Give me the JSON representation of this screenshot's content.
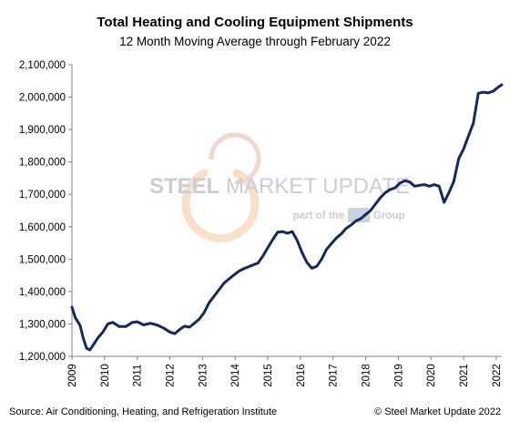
{
  "chart_data": {
    "type": "line",
    "title": "Total Heating and Cooling Equipment Shipments",
    "subtitle": "12 Month  Moving Average through  February  2022",
    "xlabel": "",
    "ylabel": "",
    "xlim": [
      2009,
      2022.17
    ],
    "ylim": [
      1200000,
      2100000
    ],
    "y_ticks": [
      1200000,
      1300000,
      1400000,
      1500000,
      1600000,
      1700000,
      1800000,
      1900000,
      2000000,
      2100000
    ],
    "y_tick_labels": [
      "1,200,000",
      "1,300,000",
      "1,400,000",
      "1,500,000",
      "1,600,000",
      "1,700,000",
      "1,800,000",
      "1,900,000",
      "2,000,000",
      "2,100,000"
    ],
    "x_ticks": [
      2009,
      2010,
      2011,
      2012,
      2013,
      2014,
      2015,
      2016,
      2017,
      2018,
      2019,
      2020,
      2021,
      2022
    ],
    "x_tick_labels": [
      "2009",
      "2010",
      "2011",
      "2012",
      "2013",
      "2014",
      "2015",
      "2016",
      "2017",
      "2018",
      "2019",
      "2020",
      "2021",
      "2022"
    ],
    "grid": false,
    "line_color": "#14295e",
    "series": [
      {
        "x": [
          2009.0,
          2009.1,
          2009.25,
          2009.35,
          2009.45,
          2009.55,
          2009.65,
          2009.8,
          2009.95,
          2010.1,
          2010.25,
          2010.45,
          2010.65,
          2010.85,
          2011.0,
          2011.2,
          2011.4,
          2011.6,
          2011.8,
          2012.0,
          2012.15,
          2012.3,
          2012.45,
          2012.6,
          2012.75,
          2012.9,
          2013.05,
          2013.2,
          2013.35,
          2013.5,
          2013.65,
          2013.8,
          2013.95,
          2014.1,
          2014.25,
          2014.4,
          2014.55,
          2014.7,
          2014.85,
          2015.0,
          2015.15,
          2015.3,
          2015.45,
          2015.6,
          2015.75,
          2015.9,
          2016.05,
          2016.2,
          2016.35,
          2016.5,
          2016.65,
          2016.8,
          2016.95,
          2017.1,
          2017.25,
          2017.4,
          2017.55,
          2017.7,
          2017.85,
          2018.0,
          2018.15,
          2018.3,
          2018.45,
          2018.6,
          2018.75,
          2018.9,
          2019.05,
          2019.2,
          2019.35,
          2019.5,
          2019.65,
          2019.8,
          2019.95,
          2020.1,
          2020.25,
          2020.4,
          2020.55,
          2020.7,
          2020.85,
          2021.0,
          2021.15,
          2021.3,
          2021.45,
          2021.6,
          2021.75,
          2021.9,
          2022.05,
          2022.17
        ],
        "y": [
          1352000,
          1320000,
          1295000,
          1255000,
          1225000,
          1220000,
          1235000,
          1258000,
          1275000,
          1300000,
          1305000,
          1292000,
          1292000,
          1305000,
          1307000,
          1297000,
          1302000,
          1297000,
          1288000,
          1275000,
          1270000,
          1283000,
          1293000,
          1290000,
          1302000,
          1315000,
          1335000,
          1365000,
          1385000,
          1405000,
          1425000,
          1438000,
          1450000,
          1462000,
          1470000,
          1476000,
          1482000,
          1488000,
          1510000,
          1535000,
          1560000,
          1583000,
          1585000,
          1580000,
          1585000,
          1558000,
          1520000,
          1490000,
          1472000,
          1478000,
          1500000,
          1530000,
          1548000,
          1565000,
          1578000,
          1595000,
          1605000,
          1618000,
          1625000,
          1638000,
          1650000,
          1670000,
          1690000,
          1705000,
          1715000,
          1720000,
          1735000,
          1742000,
          1738000,
          1725000,
          1728000,
          1730000,
          1725000,
          1730000,
          1725000,
          1675000,
          1705000,
          1740000,
          1810000,
          1840000,
          1880000,
          1920000,
          2012000,
          2015000,
          2013000,
          2018000,
          2030000,
          2038000
        ]
      }
    ]
  },
  "watermark": {
    "brand_bold": "STEEL",
    "brand_rest": " MARKET UPDATE",
    "sub_left": "part of the",
    "sub_right": "Group"
  },
  "footer": {
    "source": "Source: Air Conditioning, Heating, and Refrigeration Institute",
    "copyright": "© Steel Market Update 2022"
  }
}
